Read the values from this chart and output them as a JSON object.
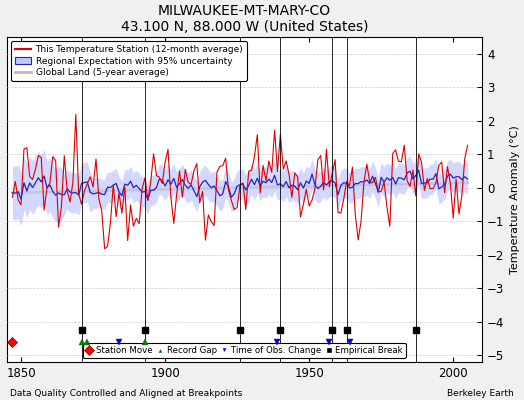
{
  "title": "MILWAUKEE-MT-MARY-CO",
  "subtitle": "43.100 N, 88.000 W (United States)",
  "ylabel": "Temperature Anomaly (°C)",
  "xlabel_left": "Data Quality Controlled and Aligned at Breakpoints",
  "xlabel_right": "Berkeley Earth",
  "xlim": [
    1845,
    2010
  ],
  "ylim": [
    -5.2,
    4.5
  ],
  "yticks": [
    -5,
    -4,
    -3,
    -2,
    -1,
    0,
    1,
    2,
    3,
    4
  ],
  "xticks": [
    1850,
    1900,
    1950,
    2000
  ],
  "background_color": "#f0f0f0",
  "plot_bg_color": "#ffffff",
  "station_line_color": "#dd0000",
  "regional_line_color": "#2222cc",
  "regional_fill_color": "#c0c8ff",
  "global_line_color": "#bbbbbb",
  "station_moves": [
    1847
  ],
  "record_gaps": [
    1871,
    1873,
    1893
  ],
  "obs_changes": [
    1884,
    1939,
    1957,
    1964
  ],
  "emp_breaks": [
    1871,
    1893,
    1926,
    1940,
    1958,
    1963,
    1987
  ],
  "seed": 12345
}
